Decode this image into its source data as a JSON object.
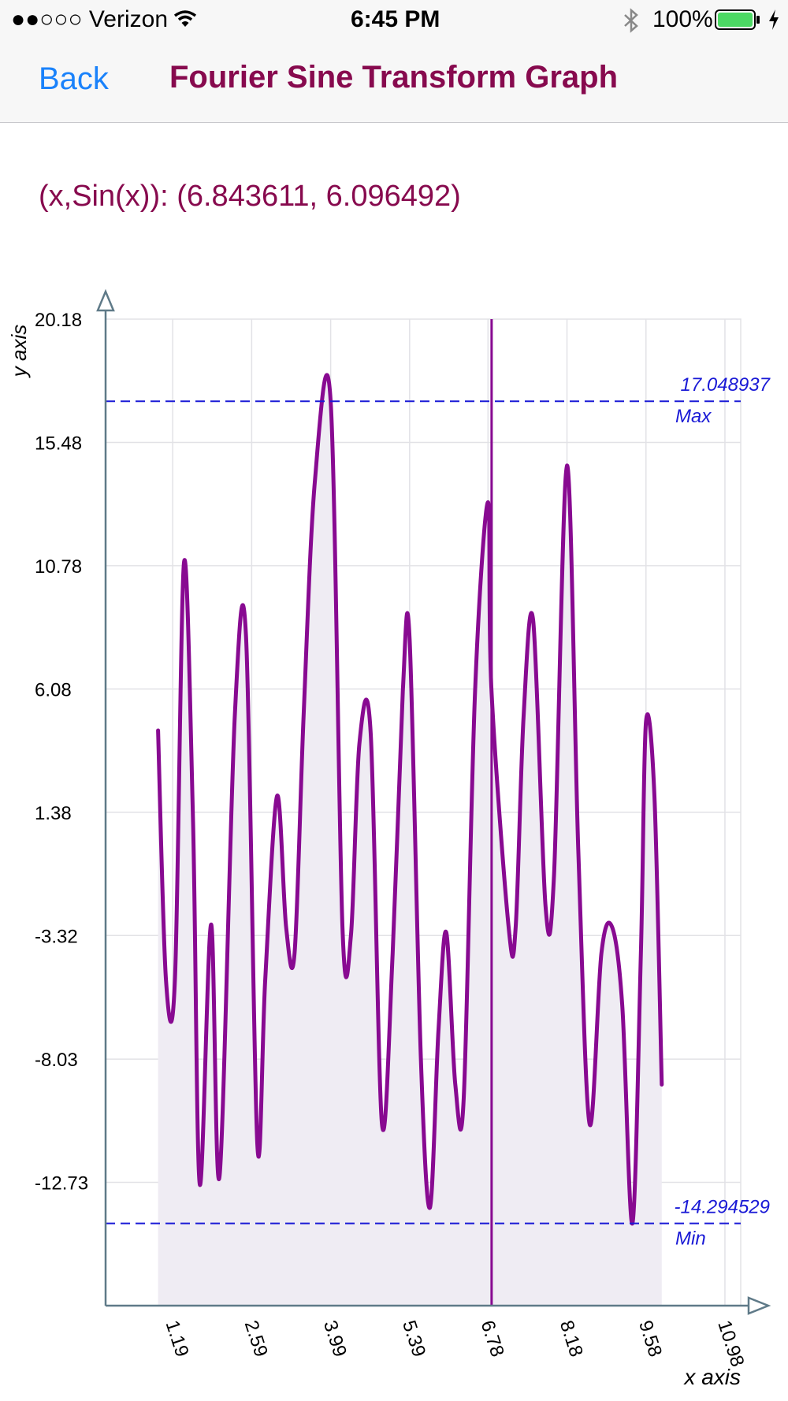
{
  "status_bar": {
    "carrier": "●●○○○ Verizon",
    "time": "6:45 PM",
    "battery": "100%",
    "icons": [
      "wifi-icon",
      "bluetooth-icon",
      "battery-icon",
      "charging-bolt-icon"
    ]
  },
  "nav": {
    "back_label": "Back",
    "title": "Fourier Sine Transform Graph"
  },
  "readout": {
    "label": "(x,Sin(x)): (6.843611, 6.096492)",
    "x": 6.843611,
    "y": 6.096492
  },
  "colors": {
    "line": "#880a91",
    "fill": "#efecf3",
    "ref_lines": "#1a1ad6",
    "axis": "#5f7a88",
    "grid": "#e2e2e6",
    "title": "#870a4e",
    "back": "#1a82fb"
  },
  "chart_data": {
    "type": "area",
    "xlabel": "x axis",
    "ylabel": "y axis",
    "x_ticks": [
      "1.19",
      "2.59",
      "3.99",
      "5.39",
      "6.78",
      "8.18",
      "9.58",
      "10.98"
    ],
    "y_ticks": [
      "20.18",
      "15.48",
      "10.78",
      "6.08",
      "1.38",
      "-3.32",
      "-8.03",
      "-12.73"
    ],
    "xlim": [
      0.0,
      11.26
    ],
    "ylim": [
      -17.43,
      20.18
    ],
    "grid": true,
    "cursor_x": 6.843611,
    "max": {
      "value": 17.048937,
      "value_label": "17.048937",
      "label": "Max"
    },
    "min": {
      "value": -14.294529,
      "value_label": "-14.294529",
      "label": "Min"
    },
    "series": [
      {
        "points": [
          [
            0.93,
            4.5
          ],
          [
            1.07,
            -5.0
          ],
          [
            1.23,
            -5.0
          ],
          [
            1.39,
            10.9
          ],
          [
            1.55,
            1.0
          ],
          [
            1.67,
            -12.8
          ],
          [
            1.87,
            -2.9
          ],
          [
            2.02,
            -12.5
          ],
          [
            2.29,
            5.0
          ],
          [
            2.49,
            8.1
          ],
          [
            2.69,
            -11.3
          ],
          [
            2.83,
            -5.0
          ],
          [
            3.04,
            2.0
          ],
          [
            3.2,
            -3.0
          ],
          [
            3.35,
            -4.0
          ],
          [
            3.51,
            5.0
          ],
          [
            3.71,
            14.0
          ],
          [
            3.99,
            17.05
          ],
          [
            4.2,
            -3.0
          ],
          [
            4.35,
            -3.3
          ],
          [
            4.5,
            4.0
          ],
          [
            4.7,
            4.4
          ],
          [
            4.9,
            -10.5
          ],
          [
            5.09,
            -4.0
          ],
          [
            5.27,
            6.0
          ],
          [
            5.39,
            8.0
          ],
          [
            5.59,
            -8.0
          ],
          [
            5.75,
            -13.7
          ],
          [
            5.9,
            -7.0
          ],
          [
            6.04,
            -3.2
          ],
          [
            6.2,
            -9.0
          ],
          [
            6.35,
            -9.5
          ],
          [
            6.55,
            6.0
          ],
          [
            6.78,
            13.2
          ],
          [
            6.84,
            6.1
          ],
          [
            7.15,
            -3.1
          ],
          [
            7.27,
            -3.0
          ],
          [
            7.41,
            5.0
          ],
          [
            7.58,
            8.7
          ],
          [
            7.8,
            -2.2
          ],
          [
            7.95,
            -1.0
          ],
          [
            8.18,
            14.6
          ],
          [
            8.38,
            0.0
          ],
          [
            8.58,
            -10.5
          ],
          [
            8.79,
            -4.0
          ],
          [
            8.98,
            -3.0
          ],
          [
            9.16,
            -6.0
          ],
          [
            9.34,
            -14.29
          ],
          [
            9.49,
            -4.0
          ],
          [
            9.58,
            4.8
          ],
          [
            9.73,
            2.0
          ],
          [
            9.86,
            -9.0
          ]
        ]
      }
    ]
  }
}
